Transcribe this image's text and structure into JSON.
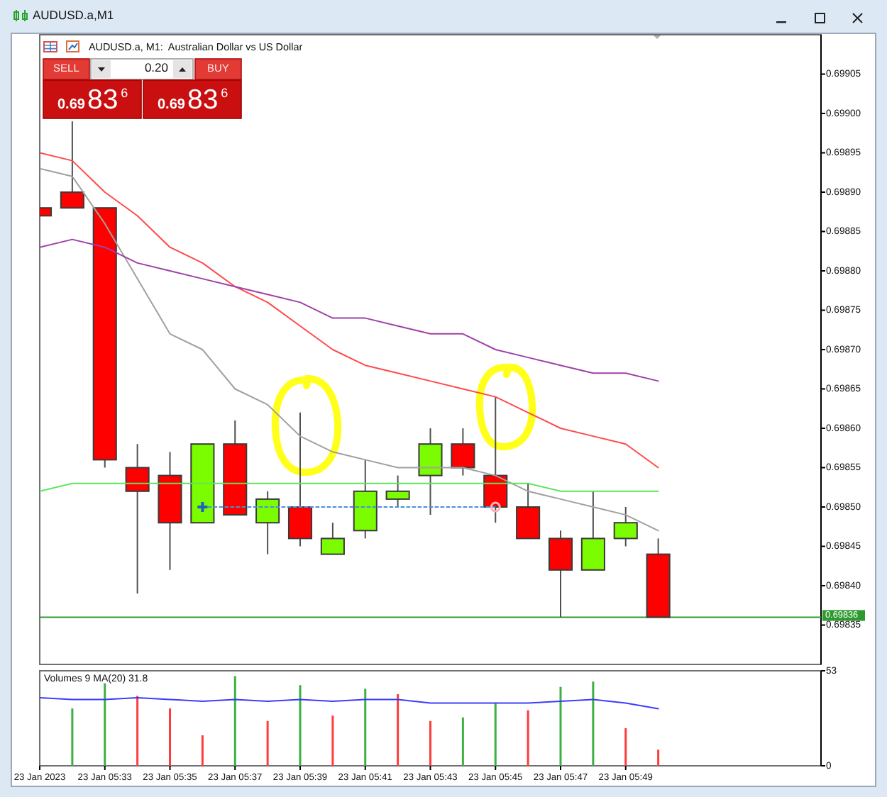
{
  "chart_data": [
    {
      "type": "candlestick",
      "title": "AUDUSD.a,M1",
      "subtitle": "AUDUSD.a, M1:  Australian Dollar vs US Dollar",
      "x": [
        "2023-01-23T05:31",
        "2023-01-23T05:32",
        "2023-01-23T05:33",
        "2023-01-23T05:34",
        "2023-01-23T05:35",
        "2023-01-23T05:36",
        "2023-01-23T05:37",
        "2023-01-23T05:38",
        "2023-01-23T05:39",
        "2023-01-23T05:40",
        "2023-01-23T05:41",
        "2023-01-23T05:42",
        "2023-01-23T05:43",
        "2023-01-23T05:44",
        "2023-01-23T05:45",
        "2023-01-23T05:46",
        "2023-01-23T05:47",
        "2023-01-23T05:48",
        "2023-01-23T05:49",
        "2023-01-23T05:50"
      ],
      "ohlc": [
        [
          0.69888,
          0.69888,
          0.69887,
          0.69887
        ],
        [
          0.6989,
          0.69899,
          0.69888,
          0.69888
        ],
        [
          0.69888,
          0.69888,
          0.69855,
          0.69856
        ],
        [
          0.69855,
          0.69858,
          0.69839,
          0.69852
        ],
        [
          0.69854,
          0.69857,
          0.69842,
          0.69848
        ],
        [
          0.69848,
          0.69858,
          0.69848,
          0.69858
        ],
        [
          0.69858,
          0.69861,
          0.69849,
          0.69849
        ],
        [
          0.69848,
          0.69852,
          0.69844,
          0.69851
        ],
        [
          0.6985,
          0.69862,
          0.69845,
          0.69846
        ],
        [
          0.69844,
          0.69848,
          0.69844,
          0.69846
        ],
        [
          0.69847,
          0.69856,
          0.69846,
          0.69852
        ],
        [
          0.69851,
          0.69854,
          0.6985,
          0.69852
        ],
        [
          0.69854,
          0.6986,
          0.69849,
          0.69858
        ],
        [
          0.69858,
          0.6986,
          0.69854,
          0.69855
        ],
        [
          0.69854,
          0.69864,
          0.69848,
          0.6985
        ],
        [
          0.6985,
          0.69853,
          0.69846,
          0.69846
        ],
        [
          0.69846,
          0.69847,
          0.69836,
          0.69842
        ],
        [
          0.69842,
          0.69852,
          0.69842,
          0.69846
        ],
        [
          0.69846,
          0.6985,
          0.69845,
          0.69848
        ],
        [
          0.69844,
          0.69846,
          0.69836,
          0.69836
        ]
      ],
      "colors": [
        "#ff0000",
        "#ff0000",
        "#ff0000",
        "#ff0000",
        "#ff0000",
        "#7cfc00",
        "#ff0000",
        "#7cfc00",
        "#ff0000",
        "#7cfc00",
        "#7cfc00",
        "#7cfc00",
        "#7cfc00",
        "#ff0000",
        "#ff0000",
        "#ff0000",
        "#ff0000",
        "#7cfc00",
        "#7cfc00",
        "#ff0000"
      ],
      "series": [
        {
          "type": "line",
          "color": "#a0a0a0",
          "values": [
            0.69893,
            0.69892,
            0.69886,
            0.69879,
            0.69872,
            0.6987,
            0.69865,
            0.69863,
            0.69859,
            0.69857,
            0.69856,
            0.69855,
            0.69855,
            0.69855,
            0.69854,
            0.69852,
            0.69851,
            0.6985,
            0.69849,
            0.69847
          ]
        },
        {
          "type": "line",
          "color": "#ff4a4a",
          "values": [
            0.69895,
            0.69894,
            0.6989,
            0.69887,
            0.69883,
            0.69881,
            0.69878,
            0.69876,
            0.69873,
            0.6987,
            0.69868,
            0.69867,
            0.69866,
            0.69865,
            0.69864,
            0.69862,
            0.6986,
            0.69859,
            0.69858,
            0.69855
          ]
        },
        {
          "type": "line",
          "color": "#a040a8",
          "values": [
            0.69883,
            0.69884,
            0.69883,
            0.69881,
            0.6988,
            0.69879,
            0.69878,
            0.69877,
            0.69876,
            0.69874,
            0.69874,
            0.69873,
            0.69872,
            0.69872,
            0.6987,
            0.69869,
            0.69868,
            0.69867,
            0.69867,
            0.69866
          ]
        },
        {
          "type": "line",
          "color": "#5ce65c",
          "values": [
            0.69852,
            0.69853,
            0.69853,
            0.69853,
            0.69853,
            0.69853,
            0.69853,
            0.69853,
            0.69853,
            0.69853,
            0.69853,
            0.69853,
            0.69853,
            0.69853,
            0.69853,
            0.69853,
            0.69852,
            0.69852,
            0.69852,
            0.69852
          ]
        },
        {
          "type": "line",
          "x": [
            "2023-01-23T05:36",
            "2023-01-23T05:45"
          ],
          "values": [
            0.6985,
            0.6985
          ],
          "color": "#4a8fd8",
          "line_style": "dotted"
        },
        {
          "type": "scatter",
          "x": [
            "2023-01-23T05:36"
          ],
          "values": [
            0.6985
          ],
          "color": "#1f5fbf",
          "marker": "cross"
        },
        {
          "type": "scatter",
          "x": [
            "2023-01-23T05:45"
          ],
          "values": [
            0.6985
          ],
          "color": "#ffb3b3",
          "marker": "circle"
        }
      ],
      "xlim": [
        "2023-01-23T05:31",
        "2023-01-23T05:55"
      ],
      "ylim": [
        0.6983,
        0.6991
      ],
      "yticks": [
        0.69835,
        {
          "value": 0.6984,
          "label": "0.69840"
        },
        0.69845,
        {
          "value": 0.6985,
          "label": "0.69850"
        },
        0.69855,
        {
          "value": 0.6986,
          "label": "0.69860"
        },
        0.69865,
        {
          "value": 0.6987,
          "label": "0.69870"
        },
        0.69875,
        {
          "value": 0.6988,
          "label": "0.69880"
        },
        0.69885,
        {
          "value": 0.6989,
          "label": "0.69890"
        },
        0.69895,
        {
          "value": 0.699,
          "label": "0.69900"
        },
        0.69905
      ],
      "tick_labels": "y",
      "ref_lines": [
        {
          "axis": "y",
          "value": 0.69836,
          "label": "0.69836",
          "color": "#2e9a2e"
        }
      ],
      "annotations": [
        "SELL",
        "0.20",
        "BUY",
        "0.6983$^{6}$",
        "0.6983$^{6}$"
      ]
    },
    {
      "type": "bar",
      "title": "Volumes 9 MA(20) 31.8",
      "x": [
        "2023-01-23T05:32",
        "2023-01-23T05:33",
        "2023-01-23T05:34",
        "2023-01-23T05:35",
        "2023-01-23T05:36",
        "2023-01-23T05:37",
        "2023-01-23T05:38",
        "2023-01-23T05:39",
        "2023-01-23T05:40",
        "2023-01-23T05:41",
        "2023-01-23T05:42",
        "2023-01-23T05:43",
        "2023-01-23T05:44",
        "2023-01-23T05:45",
        "2023-01-23T05:46",
        "2023-01-23T05:47",
        "2023-01-23T05:48",
        "2023-01-23T05:49",
        "2023-01-23T05:50"
      ],
      "series": [
        {
          "type": "bar",
          "values": [
            32,
            46,
            39,
            32,
            17,
            50,
            25,
            45,
            28,
            43,
            40,
            25,
            27,
            35,
            31,
            44,
            47,
            21,
            9
          ],
          "colors": [
            "#3cb043",
            "#3cb043",
            "#ff3b3b",
            "#ff3b3b",
            "#ff3b3b",
            "#3cb043",
            "#ff3b3b",
            "#3cb043",
            "#ff3b3b",
            "#3cb043",
            "#ff3b3b",
            "#ff3b3b",
            "#3cb043",
            "#3cb043",
            "#ff3b3b",
            "#3cb043",
            "#3cb043",
            "#ff3b3b",
            "#ff3b3b"
          ]
        },
        {
          "type": "line",
          "x": [
            "2023-01-23T05:31",
            "2023-01-23T05:32",
            "2023-01-23T05:33",
            "2023-01-23T05:34",
            "2023-01-23T05:35",
            "2023-01-23T05:36",
            "2023-01-23T05:37",
            "2023-01-23T05:38",
            "2023-01-23T05:39",
            "2023-01-23T05:40",
            "2023-01-23T05:41",
            "2023-01-23T05:42",
            "2023-01-23T05:43",
            "2023-01-23T05:44",
            "2023-01-23T05:45",
            "2023-01-23T05:46",
            "2023-01-23T05:47",
            "2023-01-23T05:48",
            "2023-01-23T05:49",
            "2023-01-23T05:50"
          ],
          "values": [
            38,
            37,
            37,
            38,
            37,
            36,
            37,
            36,
            37,
            36,
            37,
            37,
            35,
            35,
            35,
            35,
            36,
            37,
            35,
            31.8
          ],
          "color": "#3c3cff"
        }
      ],
      "xlim": [
        "2023-01-23T05:31",
        "2023-01-23T05:55"
      ],
      "ylim": [
        0,
        53
      ],
      "yticks": [
        0,
        53
      ],
      "xticks": [
        {
          "value": "2023-01-23T05:31",
          "label": "23 Jan 2023"
        },
        {
          "value": "2023-01-23T05:33",
          "label": "23 Jan 05:33"
        },
        {
          "value": "2023-01-23T05:35",
          "label": "23 Jan 05:35"
        },
        {
          "value": "2023-01-23T05:37",
          "label": "23 Jan 05:37"
        },
        {
          "value": "2023-01-23T05:39",
          "label": "23 Jan 05:39"
        },
        {
          "value": "2023-01-23T05:41",
          "label": "23 Jan 05:41"
        },
        {
          "value": "2023-01-23T05:43",
          "label": "23 Jan 05:43"
        },
        {
          "value": "2023-01-23T05:45",
          "label": "23 Jan 05:45"
        },
        {
          "value": "2023-01-23T05:47",
          "label": "23 Jan 05:47"
        },
        {
          "value": "2023-01-23T05:49",
          "label": "23 Jan 05:49"
        }
      ]
    }
  ]
}
